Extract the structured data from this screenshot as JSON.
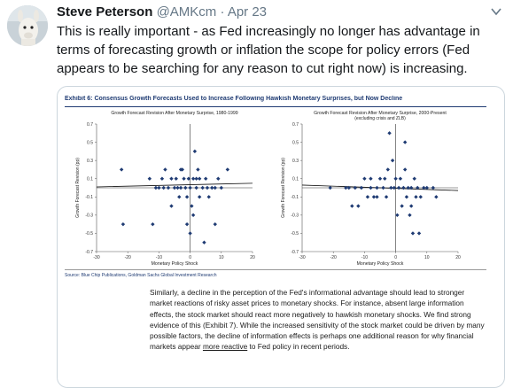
{
  "tweet": {
    "author_name": "Steve Peterson",
    "handle": "@AMKcm",
    "separator": "·",
    "date": "Apr 23",
    "text": "This is really important - as Fed increasingly no longer has advantage in terms of forecasting growth or inflation the scope for policy errors (Fed appears to be searching for any reason to cut right now) is increasing."
  },
  "icons": {
    "avatar": "llama-avatar",
    "menu": "chevron-down-icon"
  },
  "exhibit": {
    "title": "Exhibit 6: Consensus Growth Forecasts Used to Increase Following Hawkish Monetary Surprises, but Now Decline",
    "source": "Source: Blue Chip Publications, Goldman Sachs Global Investment Research",
    "paragraph_before_link": "Similarly, a decline in the perception of the Fed's informational advantage should lead to stronger market reactions of risky asset prices to monetary shocks. For instance, absent large information effects, the stock market should react more negatively to hawkish monetary shocks. We find strong evidence of this (Exhibit 7). While the increased sensitivity of the stock market could be driven by many possible factors, the decline of information effects is perhaps one additional reason for why financial markets appear ",
    "paragraph_link": "more reactive",
    "paragraph_after_link": " to Fed policy in recent periods."
  },
  "chart_data": [
    {
      "type": "scatter",
      "title": "Growth Forecast Revision After Monetary Surprise, 1980-1999",
      "subtitle": "",
      "xlabel": "Monetary Policy Shock",
      "ylabel": "Growth Forecast Revision (pp)",
      "xlim": [
        -30,
        20
      ],
      "ylim": [
        -0.7,
        0.7
      ],
      "xticks": [
        -30,
        -20,
        -10,
        0,
        10,
        20
      ],
      "yticks": [
        0.7,
        0.5,
        0.3,
        0.1,
        -0.1,
        -0.3,
        -0.5,
        -0.7
      ],
      "points": [
        [
          -22,
          0.2
        ],
        [
          -21.5,
          -0.4
        ],
        [
          -13,
          0.1
        ],
        [
          -12,
          -0.4
        ],
        [
          -11,
          0.0
        ],
        [
          -10,
          0.0
        ],
        [
          -9,
          0.1
        ],
        [
          -8.5,
          0.0
        ],
        [
          -8,
          0.2
        ],
        [
          -7,
          0.0
        ],
        [
          -6,
          0.1
        ],
        [
          -5,
          0.0
        ],
        [
          -4.5,
          0.1
        ],
        [
          -4,
          0.0
        ],
        [
          -3.5,
          -0.1
        ],
        [
          -3,
          0.0
        ],
        [
          -2.5,
          0.2
        ],
        [
          -2,
          0.1
        ],
        [
          -1.5,
          0.0
        ],
        [
          -1,
          -0.1
        ],
        [
          -0.5,
          0.1
        ],
        [
          0,
          0.0
        ],
        [
          0.5,
          -0.2
        ],
        [
          1,
          0.1
        ],
        [
          1,
          -0.3
        ],
        [
          1.5,
          0.4
        ],
        [
          2,
          0.0
        ],
        [
          2.5,
          0.2
        ],
        [
          3,
          0.1
        ],
        [
          3,
          -0.1
        ],
        [
          4,
          0.0
        ],
        [
          4.5,
          -0.6
        ],
        [
          5,
          0.1
        ],
        [
          5.5,
          0.0
        ],
        [
          6,
          -0.1
        ],
        [
          7,
          0.0
        ],
        [
          8,
          -0.4
        ],
        [
          9,
          0.1
        ],
        [
          10,
          0.0
        ],
        [
          12,
          0.2
        ],
        [
          0,
          -0.5
        ],
        [
          -1,
          -0.4
        ],
        [
          -6,
          -0.2
        ],
        [
          -3,
          0.2
        ],
        [
          2,
          0.1
        ],
        [
          8,
          0.0
        ]
      ],
      "trendline": [
        [
          -30,
          0.01
        ],
        [
          20,
          0.05
        ]
      ]
    },
    {
      "type": "scatter",
      "title": "Growth Forecast Revision After Monetary Surprise, 2000-Present",
      "subtitle": "(excluding crisis and ZLB)",
      "xlabel": "Monetary Policy Shock",
      "ylabel": "Growth Forecast Revision (pp)",
      "xlim": [
        -30,
        20
      ],
      "ylim": [
        -0.7,
        0.7
      ],
      "xticks": [
        -30,
        -20,
        -10,
        0,
        10,
        20
      ],
      "yticks": [
        0.7,
        0.5,
        0.3,
        0.1,
        -0.1,
        -0.3,
        -0.5,
        -0.7
      ],
      "points": [
        [
          -21,
          0.0
        ],
        [
          -16,
          0.0
        ],
        [
          -15,
          0.0
        ],
        [
          -14,
          -0.2
        ],
        [
          -13,
          0.0
        ],
        [
          -12,
          -0.2
        ],
        [
          -11,
          0.0
        ],
        [
          -10,
          0.1
        ],
        [
          -9,
          -0.1
        ],
        [
          -8,
          0.0
        ],
        [
          -7,
          -0.1
        ],
        [
          -6,
          0.0
        ],
        [
          -5,
          0.1
        ],
        [
          -4,
          0.0
        ],
        [
          -3.5,
          0.1
        ],
        [
          -3,
          -0.1
        ],
        [
          -2.5,
          0.2
        ],
        [
          -2,
          0.6
        ],
        [
          -1.5,
          0.0
        ],
        [
          -1,
          0.3
        ],
        [
          -0.5,
          0.0
        ],
        [
          0,
          0.1
        ],
        [
          0.5,
          -0.3
        ],
        [
          1,
          0.0
        ],
        [
          1.5,
          0.1
        ],
        [
          2,
          -0.2
        ],
        [
          2.5,
          0.0
        ],
        [
          3,
          0.5
        ],
        [
          3.5,
          -0.1
        ],
        [
          4,
          0.0
        ],
        [
          4.5,
          -0.3
        ],
        [
          5,
          0.0
        ],
        [
          5.5,
          -0.5
        ],
        [
          6,
          0.1
        ],
        [
          6.5,
          -0.1
        ],
        [
          7,
          0.0
        ],
        [
          7.5,
          -0.5
        ],
        [
          8,
          -0.1
        ],
        [
          9,
          0.0
        ],
        [
          10,
          0.0
        ],
        [
          12,
          0.0
        ],
        [
          13,
          -0.1
        ],
        [
          -6,
          -0.1
        ],
        [
          -8,
          0.1
        ],
        [
          3,
          0.2
        ],
        [
          5,
          -0.2
        ]
      ],
      "trendline": [
        [
          -30,
          0.03
        ],
        [
          20,
          -0.03
        ]
      ]
    }
  ]
}
